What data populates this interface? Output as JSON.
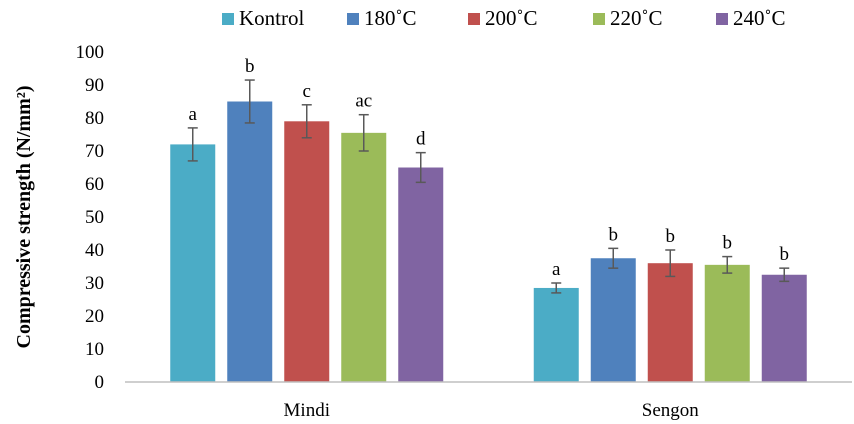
{
  "chart_data": {
    "type": "bar",
    "title": "",
    "xlabel": "",
    "ylabel": "Compressive strength (N/mm²)",
    "ylim": [
      0,
      100
    ],
    "yticks": [
      0,
      10,
      20,
      30,
      40,
      50,
      60,
      70,
      80,
      90,
      100
    ],
    "categories": [
      "Mindi",
      "Sengon"
    ],
    "legend_position": "top",
    "grid": false,
    "series": [
      {
        "name": "Kontrol",
        "color": "#4BACC6",
        "values": [
          72,
          28.5
        ],
        "errors": [
          5,
          1.5
        ],
        "labels": [
          "a",
          "a"
        ]
      },
      {
        "name": "180˚C",
        "color": "#4F81BD",
        "values": [
          85,
          37.5
        ],
        "errors": [
          6.5,
          3
        ],
        "labels": [
          "b",
          "b"
        ]
      },
      {
        "name": "200˚C",
        "color": "#C0504D",
        "values": [
          79,
          36
        ],
        "errors": [
          5,
          4
        ],
        "labels": [
          "c",
          "b"
        ]
      },
      {
        "name": "220˚C",
        "color": "#9BBB59",
        "values": [
          75.5,
          35.5
        ],
        "errors": [
          5.5,
          2.5
        ],
        "labels": [
          "ac",
          "b"
        ]
      },
      {
        "name": "240˚C",
        "color": "#8064A2",
        "values": [
          65,
          32.5
        ],
        "errors": [
          4.5,
          2
        ],
        "labels": [
          "d",
          "b"
        ]
      }
    ]
  }
}
